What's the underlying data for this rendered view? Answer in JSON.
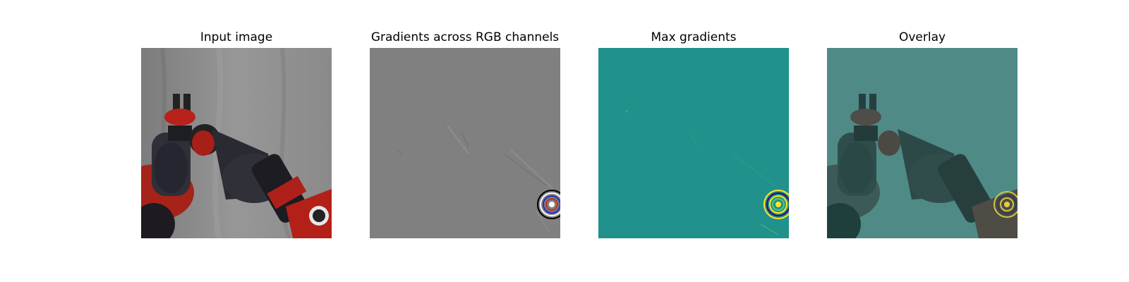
{
  "figure": {
    "panels": [
      {
        "title": "Input image"
      },
      {
        "title": "Gradients across RGB channels"
      },
      {
        "title": "Max gradients"
      },
      {
        "title": "Overlay"
      }
    ]
  },
  "colors": {
    "backdrop_gray": "#8a8a8a",
    "robot_red": "#b11f1a",
    "robot_dark": "#2b2b33",
    "gradient_gray": "#808080",
    "viridis_teal": "#21918c",
    "viridis_yellow": "#fde725",
    "overlay_teal": "#4f8a87"
  }
}
